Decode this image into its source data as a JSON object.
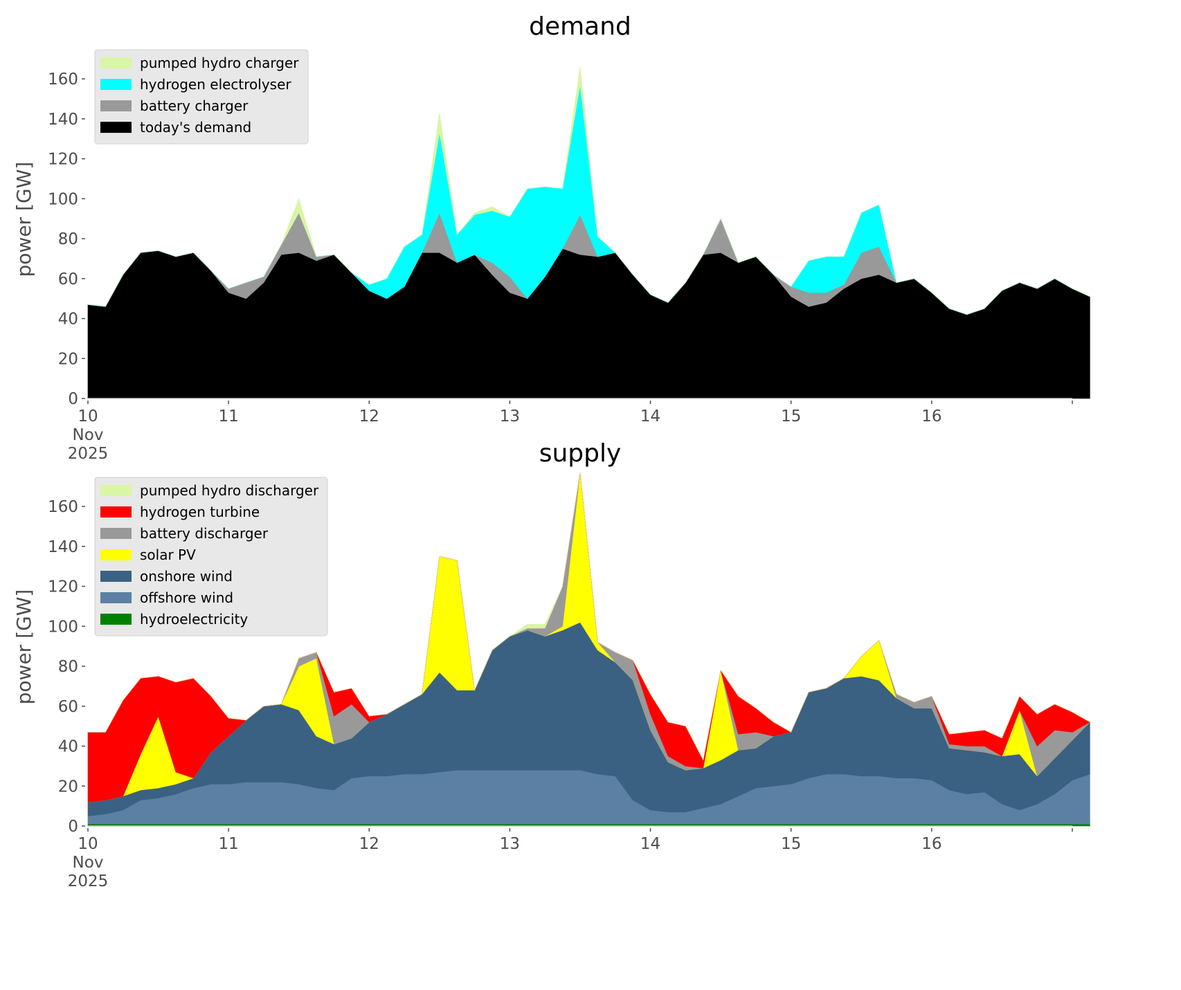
{
  "chart_data": [
    {
      "type": "area",
      "stacked": true,
      "title": "demand",
      "xlabel": "",
      "ylabel": "power [GW]",
      "ylim": [
        0,
        170
      ],
      "yticks": [
        0,
        20,
        40,
        60,
        80,
        100,
        120,
        140,
        160
      ],
      "x_start": "2025-11-10T00:00",
      "x_step_hours": 3,
      "x_range_days": [
        10,
        17
      ],
      "xticks": [
        {
          "day": 10,
          "label": [
            "10",
            "Nov",
            "2025"
          ]
        },
        {
          "day": 11,
          "label": [
            "11"
          ]
        },
        {
          "day": 12,
          "label": [
            "12"
          ]
        },
        {
          "day": 13,
          "label": [
            "13"
          ]
        },
        {
          "day": 14,
          "label": [
            "14"
          ]
        },
        {
          "day": 15,
          "label": [
            "15"
          ]
        },
        {
          "day": 16,
          "label": [
            "16"
          ]
        }
      ],
      "grid": false,
      "legend_position": "top-left",
      "legend": [
        "pumped hydro charger",
        "hydrogen electrolyser",
        "battery charger",
        "today's demand"
      ],
      "series": [
        {
          "name": "today's demand",
          "color": "#000000",
          "values": [
            47,
            46,
            62,
            73,
            74,
            71,
            73,
            64,
            53,
            50,
            58,
            72,
            73,
            69,
            72,
            63,
            54,
            50,
            56,
            73,
            73,
            68,
            72,
            62,
            53,
            50,
            61,
            75,
            72,
            71,
            73,
            62,
            52,
            48,
            58,
            72,
            73,
            68,
            71,
            62,
            51,
            46,
            48,
            55,
            60,
            62,
            58,
            60,
            53,
            45,
            42,
            45,
            54,
            58,
            55,
            60,
            55,
            51
          ]
        },
        {
          "name": "battery charger",
          "color": "#999999",
          "values": [
            0,
            0,
            0,
            0,
            0,
            0,
            0,
            0,
            2,
            8,
            3,
            5,
            20,
            2,
            0,
            0,
            0,
            0,
            0,
            0,
            20,
            0,
            0,
            6,
            8,
            0,
            0,
            0,
            20,
            0,
            0,
            0,
            0,
            0,
            0,
            0,
            17,
            0,
            0,
            0,
            5,
            7,
            5,
            2,
            13,
            14,
            0,
            0,
            0,
            0,
            0,
            0,
            0,
            0,
            0,
            0,
            0,
            0
          ]
        },
        {
          "name": "hydrogen electrolyser",
          "color": "#00ffff",
          "values": [
            0,
            0,
            0,
            0,
            0,
            0,
            0,
            0,
            0,
            0,
            0,
            0,
            0,
            0,
            0,
            0,
            3,
            10,
            20,
            9,
            40,
            14,
            20,
            26,
            30,
            55,
            45,
            30,
            65,
            10,
            0,
            0,
            0,
            0,
            0,
            0,
            0,
            0,
            0,
            0,
            0,
            16,
            18,
            14,
            20,
            21,
            0,
            0,
            0,
            0,
            0,
            0,
            0,
            0,
            0,
            0,
            0,
            0
          ]
        },
        {
          "name": "pumped hydro charger",
          "color": "#d9f5a6",
          "values": [
            0,
            0,
            0,
            0,
            0,
            0,
            0,
            0,
            0,
            0,
            0,
            0,
            7,
            0,
            0,
            0,
            0,
            0,
            0,
            0,
            10,
            0,
            1,
            2,
            0,
            0,
            0,
            0,
            9,
            0,
            0,
            0,
            0,
            0,
            0,
            0,
            0,
            0,
            0,
            0,
            0,
            0,
            0,
            0,
            0,
            0,
            0,
            0,
            0,
            0,
            0,
            0,
            0,
            0,
            0,
            0,
            0,
            0
          ]
        }
      ]
    },
    {
      "type": "area",
      "stacked": true,
      "title": "supply",
      "xlabel": "",
      "ylabel": "power [GW]",
      "ylim": [
        0,
        170
      ],
      "yticks": [
        0,
        20,
        40,
        60,
        80,
        100,
        120,
        140,
        160
      ],
      "x_start": "2025-11-10T00:00",
      "x_step_hours": 3,
      "x_range_days": [
        10,
        17
      ],
      "xticks": [
        {
          "day": 10,
          "label": [
            "10",
            "Nov",
            "2025"
          ]
        },
        {
          "day": 11,
          "label": [
            "11"
          ]
        },
        {
          "day": 12,
          "label": [
            "12"
          ]
        },
        {
          "day": 13,
          "label": [
            "13"
          ]
        },
        {
          "day": 14,
          "label": [
            "14"
          ]
        },
        {
          "day": 15,
          "label": [
            "15"
          ]
        },
        {
          "day": 16,
          "label": [
            "16"
          ]
        }
      ],
      "grid": false,
      "legend_position": "top-left",
      "legend": [
        "pumped hydro discharger",
        "hydrogen turbine",
        "battery discharger",
        "solar PV",
        "onshore wind",
        "offshore wind",
        "hydroelectricity"
      ],
      "series": [
        {
          "name": "hydroelectricity",
          "color": "#008000",
          "values": [
            1,
            1,
            1,
            1,
            1,
            1,
            1,
            1,
            1,
            1,
            1,
            1,
            1,
            1,
            1,
            1,
            1,
            1,
            1,
            1,
            1,
            1,
            1,
            1,
            1,
            1,
            1,
            1,
            1,
            1,
            1,
            1,
            1,
            1,
            1,
            1,
            1,
            1,
            1,
            1,
            1,
            1,
            1,
            1,
            1,
            1,
            1,
            1,
            1,
            1,
            1,
            1,
            1,
            1,
            1,
            1,
            1,
            1
          ]
        },
        {
          "name": "offshore wind",
          "color": "#5b80a3",
          "values": [
            4,
            5,
            7,
            12,
            13,
            15,
            18,
            20,
            20,
            21,
            21,
            21,
            20,
            18,
            17,
            23,
            24,
            24,
            25,
            25,
            26,
            27,
            27,
            27,
            27,
            27,
            27,
            27,
            27,
            25,
            24,
            12,
            7,
            6,
            6,
            8,
            10,
            14,
            18,
            19,
            20,
            23,
            25,
            25,
            24,
            24,
            23,
            23,
            22,
            17,
            15,
            16,
            10,
            7,
            10,
            15,
            22,
            25
          ]
        },
        {
          "name": "onshore wind",
          "color": "#3b6182",
          "values": [
            7,
            7,
            7,
            5,
            5,
            5,
            5,
            16,
            24,
            31,
            38,
            39,
            37,
            26,
            23,
            20,
            27,
            31,
            35,
            40,
            50,
            40,
            40,
            60,
            67,
            70,
            67,
            70,
            74,
            62,
            57,
            60,
            40,
            25,
            21,
            20,
            22,
            23,
            20,
            25,
            26,
            43,
            43,
            48,
            50,
            48,
            40,
            35,
            36,
            21,
            22,
            20,
            24,
            28,
            14,
            18,
            20,
            26
          ]
        },
        {
          "name": "solar PV",
          "color": "#ffff00",
          "values": [
            0,
            0,
            0,
            18,
            36,
            6,
            0,
            0,
            0,
            0,
            0,
            0,
            22,
            39,
            0,
            0,
            0,
            0,
            0,
            0,
            58,
            65,
            0,
            0,
            0,
            0,
            0,
            2,
            75,
            4,
            0,
            0,
            0,
            0,
            0,
            0,
            45,
            0,
            0,
            0,
            0,
            0,
            0,
            0,
            10,
            20,
            0,
            0,
            0,
            0,
            0,
            0,
            0,
            22,
            0,
            0,
            0,
            0
          ]
        },
        {
          "name": "battery discharger",
          "color": "#999999",
          "values": [
            0,
            0,
            0,
            0,
            0,
            0,
            0,
            0,
            0,
            0,
            0,
            0,
            4,
            3,
            14,
            17,
            0,
            0,
            0,
            0,
            0,
            0,
            0,
            0,
            0,
            1,
            4,
            20,
            0,
            0,
            5,
            10,
            8,
            3,
            2,
            0,
            0,
            8,
            8,
            0,
            0,
            0,
            0,
            0,
            0,
            0,
            2,
            3,
            6,
            2,
            2,
            3,
            0,
            0,
            15,
            14,
            4,
            0
          ]
        },
        {
          "name": "hydrogen turbine",
          "color": "#ff0000",
          "values": [
            35,
            34,
            48,
            38,
            20,
            45,
            50,
            28,
            9,
            0,
            0,
            0,
            0,
            0,
            12,
            8,
            3,
            0,
            0,
            0,
            0,
            0,
            0,
            0,
            0,
            0,
            0,
            0,
            0,
            0,
            0,
            0,
            10,
            17,
            20,
            4,
            0,
            19,
            12,
            7,
            0,
            0,
            0,
            0,
            0,
            0,
            0,
            0,
            0,
            5,
            7,
            8,
            9,
            7,
            16,
            13,
            10,
            0
          ]
        },
        {
          "name": "pumped hydro discharger",
          "color": "#d9f5a6",
          "values": [
            0,
            0,
            0,
            0,
            0,
            0,
            0,
            0,
            0,
            0,
            0,
            0,
            0,
            0,
            0,
            0,
            0,
            0,
            0,
            0,
            0,
            0,
            0,
            0,
            0,
            2,
            2,
            0,
            0,
            0,
            0,
            0,
            0,
            0,
            0,
            0,
            0,
            0,
            0,
            0,
            0,
            0,
            0,
            0,
            0,
            0,
            0,
            0,
            0,
            0,
            0,
            0,
            0,
            0,
            0,
            0,
            0,
            0
          ]
        }
      ]
    }
  ]
}
